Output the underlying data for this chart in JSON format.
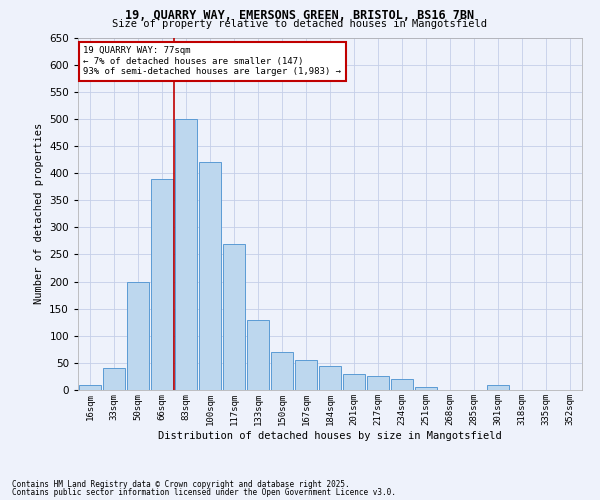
{
  "title1": "19, QUARRY WAY, EMERSONS GREEN, BRISTOL, BS16 7BN",
  "title2": "Size of property relative to detached houses in Mangotsfield",
  "xlabel": "Distribution of detached houses by size in Mangotsfield",
  "ylabel": "Number of detached properties",
  "footnote1": "Contains HM Land Registry data © Crown copyright and database right 2025.",
  "footnote2": "Contains public sector information licensed under the Open Government Licence v3.0.",
  "annotation_title": "19 QUARRY WAY: 77sqm",
  "annotation_line1": "← 7% of detached houses are smaller (147)",
  "annotation_line2": "93% of semi-detached houses are larger (1,983) →",
  "bar_labels": [
    "16sqm",
    "33sqm",
    "50sqm",
    "66sqm",
    "83sqm",
    "100sqm",
    "117sqm",
    "133sqm",
    "150sqm",
    "167sqm",
    "184sqm",
    "201sqm",
    "217sqm",
    "234sqm",
    "251sqm",
    "268sqm",
    "285sqm",
    "301sqm",
    "318sqm",
    "335sqm",
    "352sqm"
  ],
  "bar_values": [
    10,
    40,
    200,
    390,
    500,
    420,
    270,
    130,
    70,
    55,
    45,
    30,
    25,
    20,
    5,
    0,
    0,
    10,
    0,
    0,
    0
  ],
  "bar_color": "#bdd7ee",
  "bar_edge_color": "#5b9bd5",
  "vline_color": "#c00000",
  "vline_bin_index": 4,
  "annotation_box_color": "#c00000",
  "background_color": "#eef2fb",
  "ylim": [
    0,
    650
  ],
  "yticks": [
    0,
    50,
    100,
    150,
    200,
    250,
    300,
    350,
    400,
    450,
    500,
    550,
    600,
    650
  ],
  "grid_color": "#c5cfe8"
}
